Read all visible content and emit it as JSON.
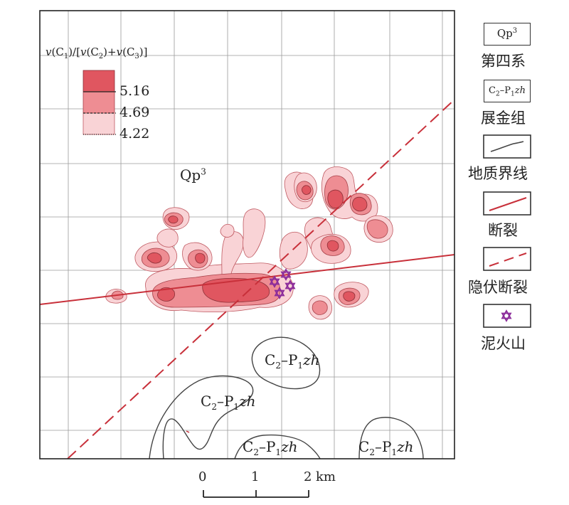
{
  "map": {
    "ratio_legend": {
      "formula": {
        "v": "v",
        "c1": "C",
        "c1_sub": "1",
        "slash": ")/[",
        "c2": "C",
        "c2_sub": "2",
        "plus": ")+",
        "c3": "C",
        "c3_sub": "3",
        "close": ")]"
      },
      "levels": [
        "5.16",
        "4.69",
        "4.22"
      ],
      "colors": [
        "#e05660",
        "#ee8d93",
        "#f9d3d6"
      ]
    },
    "labels": {
      "qp3": "Qp",
      "qp3_sup": "3",
      "formation": "C",
      "formation_sub2": "2",
      "formation_dash": "–P",
      "formation_sub1": "1",
      "formation_code": "zh"
    },
    "scale": {
      "ticks": [
        "0",
        "1",
        "2"
      ],
      "unit": "km"
    }
  },
  "legend": {
    "quaternary": {
      "box": "Qp",
      "box_sup": "3",
      "label": "第四系"
    },
    "zhanjin": {
      "box": "C",
      "box_sub2": "2",
      "box_dash": "–P",
      "box_sub1": "1",
      "box_code": "zh",
      "label": "展金组"
    },
    "boundary": {
      "label": "地质界线"
    },
    "fault": {
      "label": "断裂"
    },
    "hidden_fault": {
      "label": "隐伏断裂"
    },
    "mud_volcano": {
      "label": "泥火山"
    }
  },
  "colors": {
    "fault": "#c8303a",
    "grid": "#9a9a9a",
    "boundary": "#444444",
    "volcano": "#8b2b9a"
  }
}
